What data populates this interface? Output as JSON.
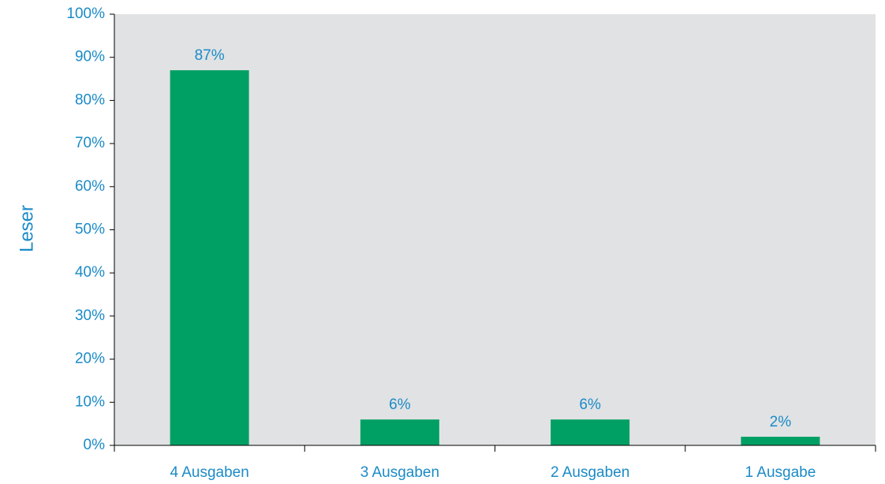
{
  "chart_data": {
    "type": "bar",
    "ylabel": "Leser",
    "categories": [
      "4 Ausgaben",
      "3 Ausgaben",
      "2 Ausgaben",
      "1 Ausgabe"
    ],
    "values": [
      87,
      6,
      6,
      2
    ],
    "value_labels": [
      "87%",
      "6%",
      "6%",
      "2%"
    ],
    "color": "#00a064",
    "background": "#e1e2e4",
    "ylim": [
      0,
      100
    ],
    "yticks": [
      {
        "value": 0,
        "label": "0%"
      },
      {
        "value": 10,
        "label": "10%"
      },
      {
        "value": 20,
        "label": "20%"
      },
      {
        "value": 30,
        "label": "30%"
      },
      {
        "value": 40,
        "label": "40%"
      },
      {
        "value": 50,
        "label": "50%"
      },
      {
        "value": 60,
        "label": "60%"
      },
      {
        "value": 70,
        "label": "70%"
      },
      {
        "value": 80,
        "label": "80%"
      },
      {
        "value": 90,
        "label": "90%"
      },
      {
        "value": 100,
        "label": "100%"
      }
    ]
  }
}
